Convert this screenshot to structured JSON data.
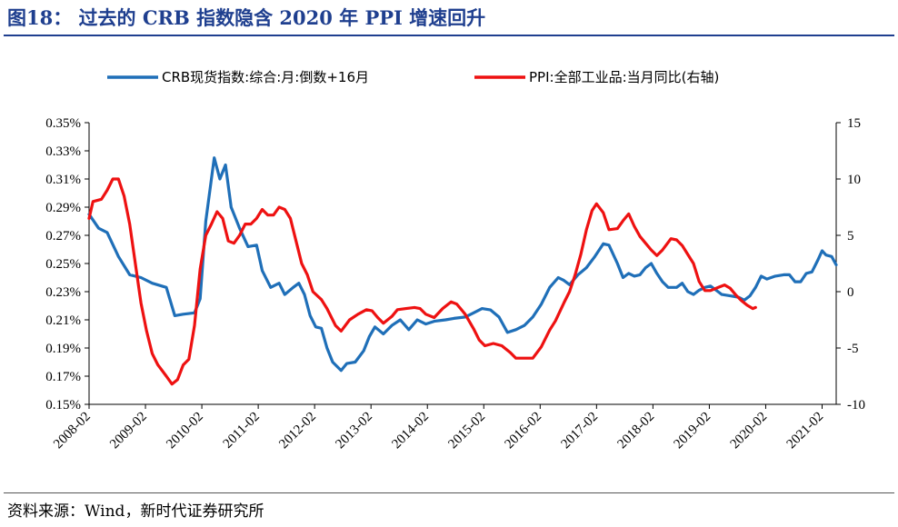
{
  "header": {
    "title": "图18： 过去的 CRB 指数隐含 2020 年 PPI 增速回升"
  },
  "footer": {
    "source": "资料来源：Wind，新时代证券研究所"
  },
  "colors": {
    "crb": "#1f6fb8",
    "ppi": "#ee1111",
    "title": "#1f3f8f"
  },
  "chart_data": {
    "type": "line",
    "legend_position": "top",
    "grid": false,
    "x_tick_labels": [
      "2008-02",
      "2009-02",
      "2010-02",
      "2011-02",
      "2012-02",
      "2013-02",
      "2014-02",
      "2015-02",
      "2016-02",
      "2017-02",
      "2018-02",
      "2019-02",
      "2020-02",
      "2021-02"
    ],
    "x_range": [
      2008.08,
      2021.33
    ],
    "y_left": {
      "range": [
        0.15,
        0.35
      ],
      "ticks": [
        0.15,
        0.17,
        0.19,
        0.21,
        0.23,
        0.25,
        0.27,
        0.29,
        0.31,
        0.33,
        0.35
      ],
      "tick_labels": [
        "0.15%",
        "0.17%",
        "0.19%",
        "0.21%",
        "0.23%",
        "0.25%",
        "0.27%",
        "0.29%",
        "0.31%",
        "0.33%",
        "0.35%"
      ]
    },
    "y_right": {
      "range": [
        -10,
        15
      ],
      "ticks": [
        -10,
        -5,
        0,
        5,
        10,
        15
      ],
      "tick_labels": [
        "-10",
        "-5",
        "0",
        "5",
        "10",
        "15"
      ]
    },
    "series": [
      {
        "name": "CRB现货指数:综合:月:倒数+16月",
        "axis": "left",
        "color": "#1f6fb8",
        "points": [
          [
            2008.08,
            0.285
          ],
          [
            2008.25,
            0.275
          ],
          [
            2008.4,
            0.272
          ],
          [
            2008.6,
            0.255
          ],
          [
            2008.8,
            0.242
          ],
          [
            2009.0,
            0.24
          ],
          [
            2009.2,
            0.236
          ],
          [
            2009.45,
            0.233
          ],
          [
            2009.6,
            0.213
          ],
          [
            2009.75,
            0.214
          ],
          [
            2009.95,
            0.215
          ],
          [
            2010.05,
            0.225
          ],
          [
            2010.15,
            0.28
          ],
          [
            2010.3,
            0.325
          ],
          [
            2010.4,
            0.31
          ],
          [
            2010.5,
            0.32
          ],
          [
            2010.6,
            0.29
          ],
          [
            2010.75,
            0.275
          ],
          [
            2010.9,
            0.262
          ],
          [
            2011.05,
            0.263
          ],
          [
            2011.15,
            0.245
          ],
          [
            2011.3,
            0.233
          ],
          [
            2011.45,
            0.236
          ],
          [
            2011.55,
            0.228
          ],
          [
            2011.7,
            0.233
          ],
          [
            2011.8,
            0.236
          ],
          [
            2011.9,
            0.228
          ],
          [
            2012.0,
            0.213
          ],
          [
            2012.1,
            0.205
          ],
          [
            2012.2,
            0.204
          ],
          [
            2012.3,
            0.19
          ],
          [
            2012.4,
            0.18
          ],
          [
            2012.55,
            0.174
          ],
          [
            2012.65,
            0.179
          ],
          [
            2012.8,
            0.18
          ],
          [
            2012.95,
            0.188
          ],
          [
            2013.05,
            0.198
          ],
          [
            2013.15,
            0.205
          ],
          [
            2013.3,
            0.2
          ],
          [
            2013.45,
            0.206
          ],
          [
            2013.6,
            0.21
          ],
          [
            2013.75,
            0.203
          ],
          [
            2013.9,
            0.21
          ],
          [
            2014.05,
            0.207
          ],
          [
            2014.2,
            0.209
          ],
          [
            2014.4,
            0.21
          ],
          [
            2014.55,
            0.211
          ],
          [
            2014.75,
            0.212
          ],
          [
            2014.9,
            0.215
          ],
          [
            2015.05,
            0.218
          ],
          [
            2015.2,
            0.217
          ],
          [
            2015.35,
            0.212
          ],
          [
            2015.5,
            0.201
          ],
          [
            2015.65,
            0.203
          ],
          [
            2015.8,
            0.206
          ],
          [
            2015.95,
            0.212
          ],
          [
            2016.1,
            0.221
          ],
          [
            2016.25,
            0.233
          ],
          [
            2016.4,
            0.24
          ],
          [
            2016.5,
            0.238
          ],
          [
            2016.6,
            0.235
          ],
          [
            2016.75,
            0.242
          ],
          [
            2016.9,
            0.247
          ],
          [
            2017.05,
            0.255
          ],
          [
            2017.2,
            0.264
          ],
          [
            2017.3,
            0.263
          ],
          [
            2017.45,
            0.25
          ],
          [
            2017.55,
            0.24
          ],
          [
            2017.65,
            0.243
          ],
          [
            2017.75,
            0.241
          ],
          [
            2017.85,
            0.242
          ],
          [
            2017.95,
            0.247
          ],
          [
            2018.05,
            0.25
          ],
          [
            2018.15,
            0.243
          ],
          [
            2018.25,
            0.237
          ],
          [
            2018.35,
            0.233
          ],
          [
            2018.5,
            0.233
          ],
          [
            2018.6,
            0.236
          ],
          [
            2018.7,
            0.23
          ],
          [
            2018.8,
            0.228
          ],
          [
            2018.9,
            0.231
          ],
          [
            2019.0,
            0.233
          ],
          [
            2019.1,
            0.234
          ],
          [
            2019.2,
            0.231
          ],
          [
            2019.3,
            0.228
          ],
          [
            2019.45,
            0.227
          ],
          [
            2019.6,
            0.226
          ],
          [
            2019.7,
            0.224
          ],
          [
            2019.8,
            0.227
          ],
          [
            2019.9,
            0.233
          ],
          [
            2020.0,
            0.241
          ],
          [
            2020.1,
            0.239
          ],
          [
            2020.25,
            0.241
          ],
          [
            2020.4,
            0.242
          ],
          [
            2020.5,
            0.242
          ],
          [
            2020.6,
            0.237
          ],
          [
            2020.7,
            0.237
          ],
          [
            2020.8,
            0.243
          ],
          [
            2020.9,
            0.244
          ],
          [
            2021.0,
            0.252
          ],
          [
            2021.08,
            0.259
          ],
          [
            2021.15,
            0.256
          ],
          [
            2021.25,
            0.255
          ],
          [
            2021.33,
            0.249
          ]
        ]
      },
      {
        "name": "PPI:全部工业品:当月同比(右轴)",
        "axis": "right",
        "color": "#ee1111",
        "points": [
          [
            2008.08,
            6.5
          ],
          [
            2008.15,
            8.0
          ],
          [
            2008.3,
            8.2
          ],
          [
            2008.4,
            9.0
          ],
          [
            2008.5,
            10.0
          ],
          [
            2008.6,
            10.0
          ],
          [
            2008.7,
            8.5
          ],
          [
            2008.8,
            6.0
          ],
          [
            2008.9,
            2.5
          ],
          [
            2009.0,
            -1.0
          ],
          [
            2009.1,
            -3.5
          ],
          [
            2009.2,
            -5.5
          ],
          [
            2009.3,
            -6.5
          ],
          [
            2009.45,
            -7.5
          ],
          [
            2009.55,
            -8.2
          ],
          [
            2009.65,
            -7.8
          ],
          [
            2009.75,
            -6.5
          ],
          [
            2009.85,
            -6.0
          ],
          [
            2009.95,
            -3.0
          ],
          [
            2010.05,
            2.0
          ],
          [
            2010.15,
            5.0
          ],
          [
            2010.25,
            6.0
          ],
          [
            2010.35,
            7.1
          ],
          [
            2010.45,
            6.5
          ],
          [
            2010.55,
            4.5
          ],
          [
            2010.65,
            4.3
          ],
          [
            2010.75,
            5.0
          ],
          [
            2010.85,
            6.0
          ],
          [
            2010.95,
            6.0
          ],
          [
            2011.05,
            6.5
          ],
          [
            2011.15,
            7.3
          ],
          [
            2011.25,
            6.8
          ],
          [
            2011.35,
            6.8
          ],
          [
            2011.45,
            7.5
          ],
          [
            2011.55,
            7.3
          ],
          [
            2011.65,
            6.5
          ],
          [
            2011.75,
            4.5
          ],
          [
            2011.85,
            2.5
          ],
          [
            2011.95,
            1.5
          ],
          [
            2012.05,
            0.0
          ],
          [
            2012.2,
            -0.7
          ],
          [
            2012.3,
            -1.5
          ],
          [
            2012.45,
            -3.0
          ],
          [
            2012.55,
            -3.5
          ],
          [
            2012.7,
            -2.5
          ],
          [
            2012.85,
            -2.0
          ],
          [
            2013.0,
            -1.6
          ],
          [
            2013.1,
            -1.7
          ],
          [
            2013.2,
            -2.3
          ],
          [
            2013.3,
            -2.8
          ],
          [
            2013.45,
            -2.2
          ],
          [
            2013.55,
            -1.6
          ],
          [
            2013.7,
            -1.5
          ],
          [
            2013.85,
            -1.4
          ],
          [
            2013.95,
            -1.5
          ],
          [
            2014.05,
            -2.0
          ],
          [
            2014.2,
            -2.3
          ],
          [
            2014.35,
            -1.5
          ],
          [
            2014.5,
            -0.9
          ],
          [
            2014.6,
            -1.1
          ],
          [
            2014.75,
            -2.0
          ],
          [
            2014.9,
            -3.3
          ],
          [
            2015.0,
            -4.3
          ],
          [
            2015.1,
            -4.8
          ],
          [
            2015.25,
            -4.6
          ],
          [
            2015.4,
            -4.8
          ],
          [
            2015.55,
            -5.4
          ],
          [
            2015.65,
            -5.9
          ],
          [
            2015.8,
            -5.9
          ],
          [
            2015.95,
            -5.9
          ],
          [
            2016.1,
            -4.9
          ],
          [
            2016.25,
            -3.4
          ],
          [
            2016.35,
            -2.6
          ],
          [
            2016.5,
            -1.0
          ],
          [
            2016.6,
            0.0
          ],
          [
            2016.7,
            1.5
          ],
          [
            2016.8,
            3.3
          ],
          [
            2016.9,
            5.5
          ],
          [
            2017.0,
            7.2
          ],
          [
            2017.08,
            7.8
          ],
          [
            2017.2,
            7.0
          ],
          [
            2017.3,
            5.5
          ],
          [
            2017.45,
            5.6
          ],
          [
            2017.55,
            6.3
          ],
          [
            2017.65,
            6.9
          ],
          [
            2017.75,
            5.8
          ],
          [
            2017.85,
            4.9
          ],
          [
            2017.95,
            4.3
          ],
          [
            2018.05,
            3.7
          ],
          [
            2018.15,
            3.2
          ],
          [
            2018.25,
            3.7
          ],
          [
            2018.4,
            4.7
          ],
          [
            2018.5,
            4.6
          ],
          [
            2018.6,
            4.1
          ],
          [
            2018.7,
            3.3
          ],
          [
            2018.8,
            2.5
          ],
          [
            2018.9,
            0.9
          ],
          [
            2019.0,
            0.1
          ],
          [
            2019.1,
            0.1
          ],
          [
            2019.25,
            0.4
          ],
          [
            2019.35,
            0.6
          ],
          [
            2019.45,
            0.3
          ],
          [
            2019.55,
            -0.3
          ],
          [
            2019.65,
            -0.8
          ],
          [
            2019.75,
            -1.2
          ],
          [
            2019.85,
            -1.5
          ],
          [
            2019.9,
            -1.4
          ]
        ]
      }
    ]
  }
}
